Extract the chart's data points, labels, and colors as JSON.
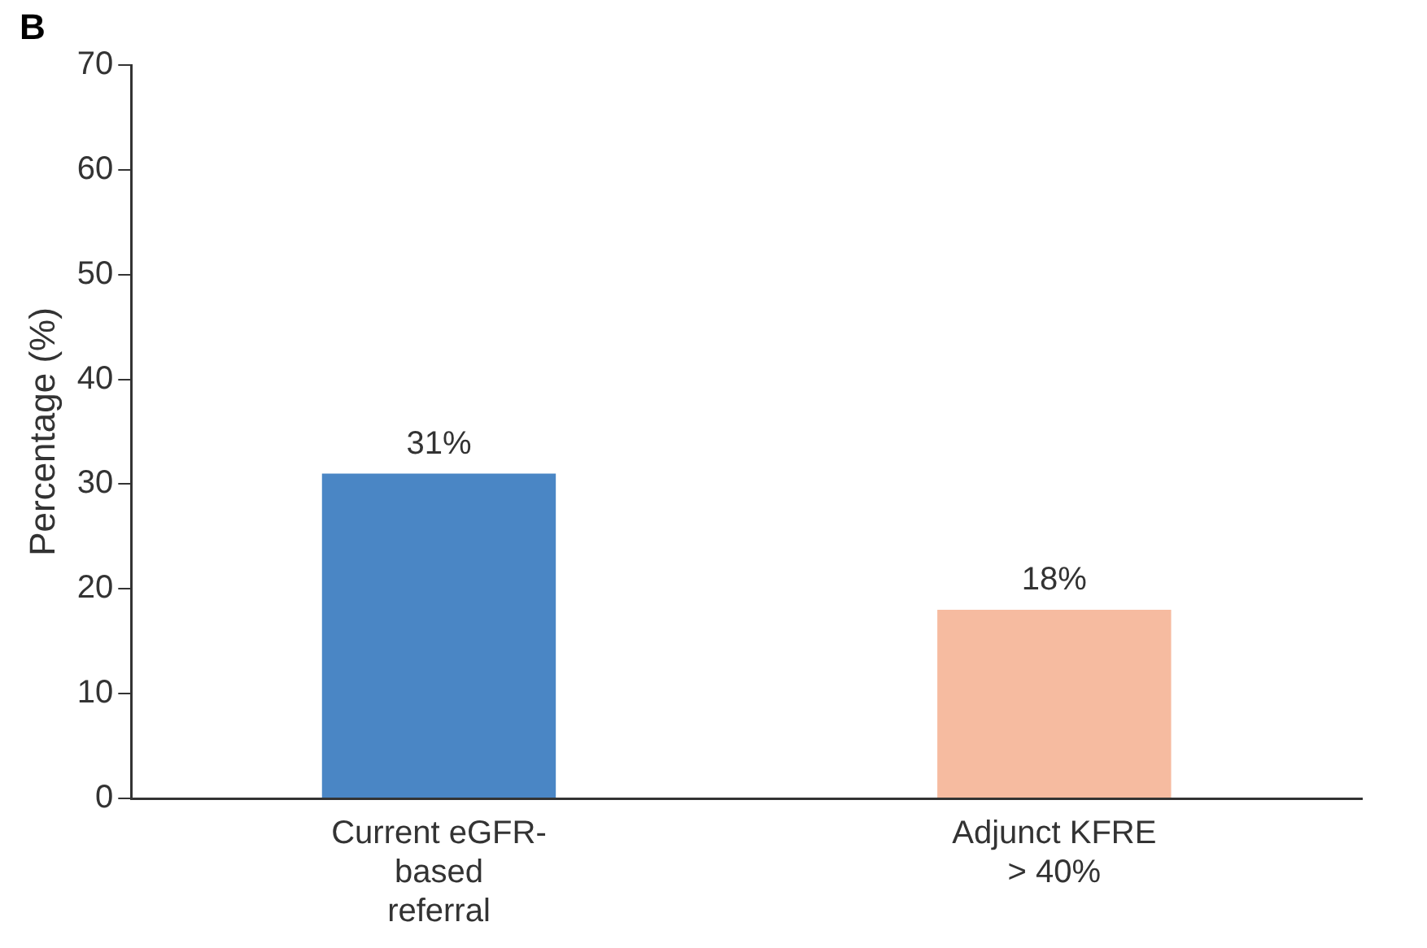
{
  "chart_data": {
    "type": "bar",
    "ylabel": "Percentage (%)",
    "annotations": [
      "B"
    ],
    "categories": [
      "Current eGFR-based referral",
      "Adjunct KFRE > 40%"
    ],
    "values": [
      31,
      18
    ],
    "colors": [
      "#4a86c5",
      "#f6bba0"
    ],
    "value_labels": [
      "31%",
      "18%"
    ],
    "ylim": [
      0,
      70
    ],
    "yticks": [
      0,
      10,
      20,
      30,
      40,
      50,
      60,
      70
    ],
    "grid": false,
    "legend": false
  }
}
